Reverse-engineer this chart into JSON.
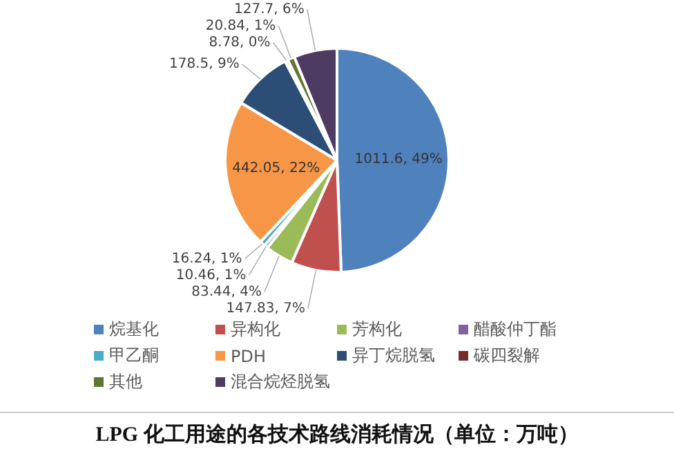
{
  "chart_data": {
    "type": "pie",
    "title": "LPG 化工用途的各技术路线消耗情况（单位：万吨）",
    "categories": [
      "烷基化",
      "异构化",
      "芳构化",
      "醋酸仲丁酯",
      "甲乙酮",
      "PDH",
      "异丁烷脱氢",
      "碳四裂解",
      "其他",
      "混合烷烃脱氢"
    ],
    "values": [
      1011.6,
      147.83,
      83.44,
      10.46,
      16.24,
      442.05,
      178.5,
      8.78,
      20.84,
      127.7
    ],
    "colors": [
      "#4f81bd",
      "#c0504d",
      "#9bbb59",
      "#8064a2",
      "#4bacc6",
      "#f79646",
      "#2c4d75",
      "#772c2a",
      "#5f7530",
      "#4d3b62"
    ],
    "value_labels": [
      "1011.6, 49%",
      "147.83, 7%",
      "83.44, 4%",
      "10.46, 1%",
      "16.24, 1%",
      "442.05, 22%",
      "178.5, 9%",
      "8.78, 0%",
      "20.84, 1%",
      "127.7, 6%"
    ],
    "legend": "bottom"
  }
}
